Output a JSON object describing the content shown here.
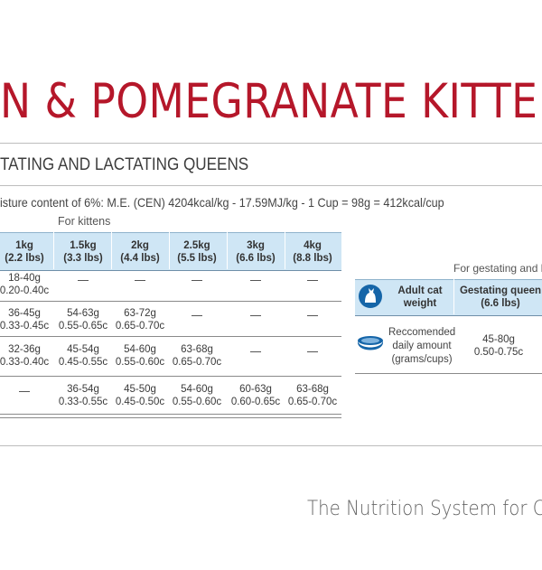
{
  "header": {
    "title": "N & POMEGRANATE KITTE",
    "subtitle": "TATING AND LACTATING QUEENS",
    "moisture_line": "isture content of 6%: M.E. (CEN) 4204kcal/kg - 17.59MJ/kg - 1 Cup = 98g = 412kcal/cup"
  },
  "kitten_table": {
    "group_label": "For kittens",
    "columns": [
      {
        "weight": "1kg",
        "lbs": "(2.2 lbs)"
      },
      {
        "weight": "1.5kg",
        "lbs": "(3.3 lbs)"
      },
      {
        "weight": "2kg",
        "lbs": "(4.4 lbs)"
      },
      {
        "weight": "2.5kg",
        "lbs": "(5.5 lbs)"
      },
      {
        "weight": "3kg",
        "lbs": "(6.6 lbs)"
      },
      {
        "weight": "4kg",
        "lbs": "(8.8 lbs)"
      }
    ],
    "rows": [
      [
        {
          "g": "18-40g",
          "c": "0.20-0.40c"
        },
        null,
        null,
        null,
        null,
        null
      ],
      [
        {
          "g": "36-45g",
          "c": "0.33-0.45c"
        },
        {
          "g": "54-63g",
          "c": "0.55-0.65c"
        },
        {
          "g": "63-72g",
          "c": "0.65-0.70c"
        },
        null,
        null,
        null
      ],
      [
        {
          "g": "32-36g",
          "c": "0.33-0.40c"
        },
        {
          "g": "45-54g",
          "c": "0.45-0.55c"
        },
        {
          "g": "54-60g",
          "c": "0.55-0.60c"
        },
        {
          "g": "63-68g",
          "c": "0.65-0.70c"
        },
        null,
        null
      ],
      [
        null,
        {
          "g": "36-54g",
          "c": "0.33-0.55c"
        },
        {
          "g": "45-50g",
          "c": "0.45-0.50c"
        },
        {
          "g": "54-60g",
          "c": "0.55-0.60c"
        },
        {
          "g": "60-63g",
          "c": "0.60-0.65c"
        },
        {
          "g": "63-68g",
          "c": "0.65-0.70c"
        }
      ]
    ]
  },
  "gestating_table": {
    "group_label": "For gestating and l",
    "col1_header": "Adult cat weight",
    "col2_header_line1": "Gestating queen",
    "col2_header_line2": "(6.6 lbs)",
    "row_label": "Reccomended daily amount (grams/cups)",
    "value_g": "45-80g",
    "value_c": "0.50-0.75c",
    "icons": [
      "cat-icon",
      "bowl-icon"
    ],
    "accent": "#1565a8"
  },
  "footer": {
    "text": "The Nutrition System for C"
  },
  "colors": {
    "title": "#b5172a",
    "header_bg": "#cfe6f5"
  }
}
